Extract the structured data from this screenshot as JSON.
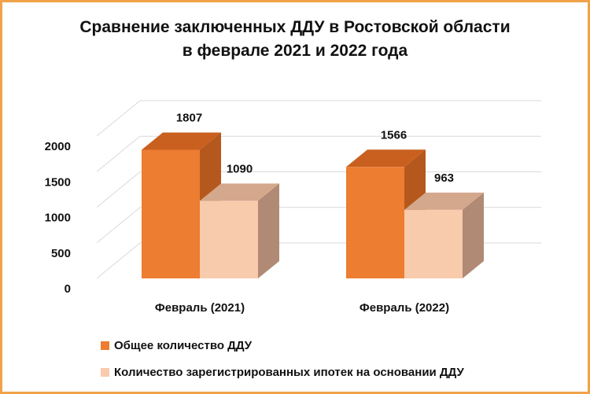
{
  "title_lines": [
    "Сравнение заключенных ДДУ в Ростовской области",
    "в феврале 2021 и 2022 года"
  ],
  "colors": {
    "series1": "#ed7d31",
    "series2": "#f8cbad",
    "frame": "#f0a24b"
  },
  "chart_data": {
    "type": "bar",
    "categories": [
      "Февраль (2021)",
      "Февраль (2022)"
    ],
    "series": [
      {
        "name": "Общее количество ДДУ",
        "values": [
          1807,
          1566
        ]
      },
      {
        "name": "Количество зарегистрированных ипотек на основании ДДУ",
        "values": [
          1090,
          963
        ]
      }
    ],
    "yticks": [
      0,
      500,
      1000,
      1500,
      2000
    ],
    "ylim": [
      0,
      2000
    ],
    "grid": true,
    "legend_position": "bottom"
  }
}
